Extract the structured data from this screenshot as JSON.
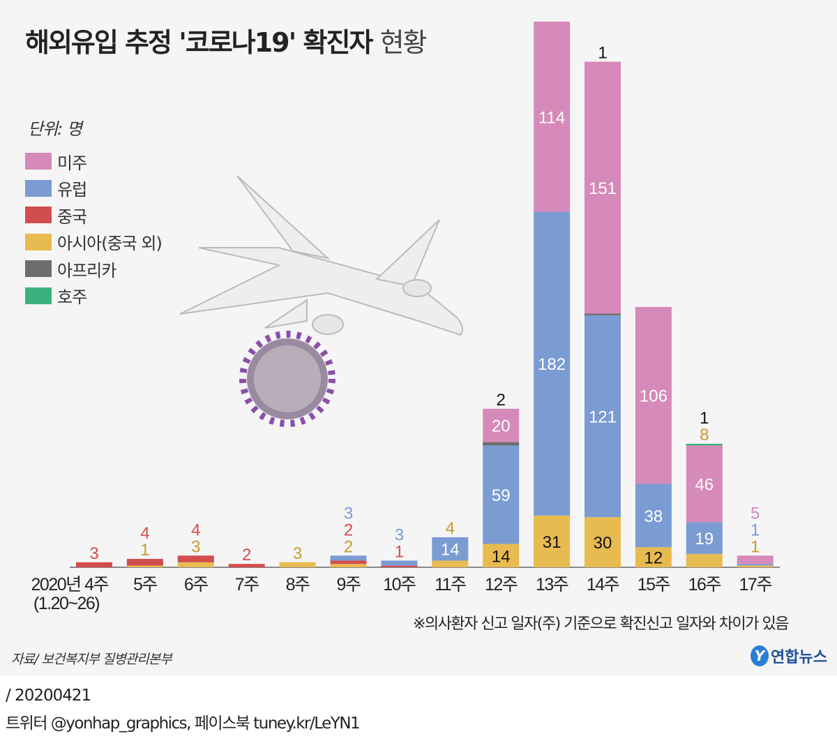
{
  "chart_data": {
    "type": "bar",
    "stacked": true,
    "title": "해외유입 추정 '코로나19' 확진자",
    "title_suffix": "현황",
    "unit_label": "단위: 명",
    "categories": [
      "2020년 4주",
      "5주",
      "6주",
      "7주",
      "8주",
      "9주",
      "10주",
      "11주",
      "12주",
      "13주",
      "14주",
      "15주",
      "16주",
      "17주"
    ],
    "first_category_sub": "(1.20~26)",
    "series": [
      {
        "name": "아시아(중국 외)",
        "key": "asia",
        "color": "#e8bb50",
        "values": [
          0,
          1,
          3,
          0,
          3,
          2,
          0,
          4,
          14,
          31,
          30,
          12,
          8,
          1
        ]
      },
      {
        "name": "중국",
        "key": "china",
        "color": "#d24d4d",
        "values": [
          3,
          4,
          4,
          2,
          0,
          2,
          1,
          0,
          0,
          0,
          0,
          0,
          0,
          0
        ]
      },
      {
        "name": "유럽",
        "key": "europe",
        "color": "#7b9bd3",
        "values": [
          0,
          0,
          0,
          0,
          0,
          3,
          3,
          14,
          59,
          182,
          121,
          38,
          19,
          1
        ]
      },
      {
        "name": "아프리카",
        "key": "africa",
        "color": "#6d6d6d",
        "values": [
          0,
          0,
          0,
          0,
          0,
          0,
          0,
          0,
          2,
          0,
          1,
          0,
          0,
          0
        ]
      },
      {
        "name": "미주",
        "key": "americas",
        "color": "#d58ab9",
        "values": [
          0,
          0,
          0,
          0,
          0,
          0,
          0,
          0,
          20,
          114,
          151,
          106,
          46,
          5
        ]
      },
      {
        "name": "호주",
        "key": "oceania",
        "color": "#3bb27d",
        "values": [
          0,
          0,
          0,
          0,
          0,
          0,
          0,
          0,
          0,
          0,
          0,
          0,
          1,
          0
        ]
      }
    ],
    "legend_order": [
      "americas",
      "europe",
      "china",
      "asia",
      "africa",
      "oceania"
    ],
    "legend_position": "left",
    "ylim": [
      0,
      330
    ],
    "grid": false
  },
  "note": "※의사환자 신고 일자(주) 기준으로 확진신고 일자와 차이가 있음",
  "source": "자료/ 보건복지부 질병관리본부",
  "logo": {
    "text": "연합뉴스",
    "mark": "Y"
  },
  "footer": {
    "date": "/ 20200421",
    "social": "트위터 @yonhap_graphics, 페이스북 tuney.kr/LeYN1"
  }
}
